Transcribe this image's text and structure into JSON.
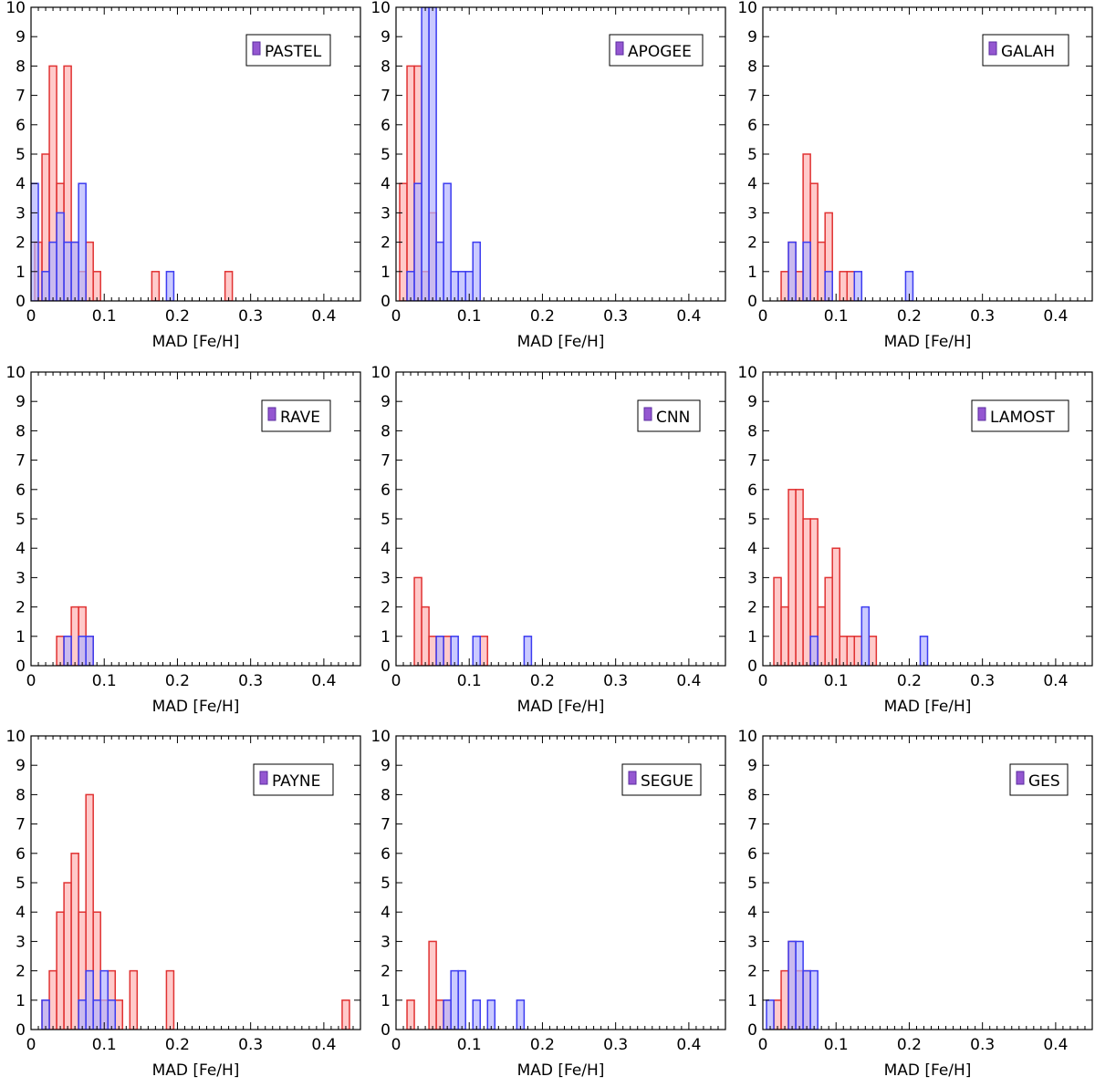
{
  "colors": {
    "red_fill": "#ffb3b3",
    "red_edge": "#e03232",
    "blue_fill": "#b3b3ff",
    "blue_edge": "#3c3cf0",
    "legend_swatch": "#9457d1",
    "overlap_fill": "#9a6acf"
  },
  "chart_data": [
    {
      "type": "bar",
      "legend": "PASTEL",
      "xlabel": "MAD [Fe/H]",
      "ylabel": "",
      "xlim": [
        0,
        0.45
      ],
      "ylim": [
        0,
        10
      ],
      "bin_width": 0.01,
      "xticks": [
        "0",
        "0.1",
        "0.2",
        "0.3",
        "0.4"
      ],
      "yticks": [
        "0",
        "1",
        "2",
        "3",
        "4",
        "5",
        "6",
        "7",
        "8",
        "9",
        "10"
      ],
      "series": [
        {
          "name": "red",
          "bins": [
            0.005,
            0.015,
            0.025,
            0.035,
            0.045,
            0.055,
            0.065,
            0.075,
            0.085,
            0.165,
            0.265
          ],
          "counts": [
            2,
            5,
            8,
            4,
            8,
            2,
            1,
            2,
            1,
            1,
            1
          ]
        },
        {
          "name": "blue",
          "bins": [
            0.0,
            0.015,
            0.025,
            0.035,
            0.045,
            0.055,
            0.065,
            0.185
          ],
          "counts": [
            4,
            1,
            2,
            3,
            2,
            2,
            4,
            1
          ]
        }
      ]
    },
    {
      "type": "bar",
      "legend": "APOGEE",
      "xlabel": "MAD [Fe/H]",
      "ylabel": "",
      "xlim": [
        0,
        0.45
      ],
      "ylim": [
        0,
        10
      ],
      "bin_width": 0.01,
      "xticks": [
        "0",
        "0.1",
        "0.2",
        "0.3",
        "0.4"
      ],
      "yticks": [
        "0",
        "1",
        "2",
        "3",
        "4",
        "5",
        "6",
        "7",
        "8",
        "9",
        "10"
      ],
      "series": [
        {
          "name": "red",
          "bins": [
            0.005,
            0.015,
            0.025,
            0.035,
            0.045
          ],
          "counts": [
            4,
            8,
            8,
            1,
            3
          ]
        },
        {
          "name": "blue",
          "bins": [
            0.015,
            0.025,
            0.035,
            0.045,
            0.055,
            0.065,
            0.075,
            0.085,
            0.095,
            0.105
          ],
          "counts": [
            1,
            4,
            10,
            10,
            2,
            4,
            1,
            1,
            1,
            2
          ]
        }
      ]
    },
    {
      "type": "bar",
      "legend": "GALAH",
      "xlabel": "MAD [Fe/H]",
      "ylabel": "",
      "xlim": [
        0,
        0.45
      ],
      "ylim": [
        0,
        10
      ],
      "bin_width": 0.01,
      "xticks": [
        "0",
        "0.1",
        "0.2",
        "0.3",
        "0.4"
      ],
      "yticks": [
        "0",
        "1",
        "2",
        "3",
        "4",
        "5",
        "6",
        "7",
        "8",
        "9",
        "10"
      ],
      "series": [
        {
          "name": "red",
          "bins": [
            0.025,
            0.035,
            0.045,
            0.055,
            0.065,
            0.075,
            0.085,
            0.105,
            0.115
          ],
          "counts": [
            1,
            2,
            1,
            5,
            4,
            2,
            3,
            1,
            1
          ]
        },
        {
          "name": "blue",
          "bins": [
            0.035,
            0.055,
            0.085,
            0.125,
            0.195
          ],
          "counts": [
            2,
            2,
            1,
            1,
            1
          ]
        }
      ]
    },
    {
      "type": "bar",
      "legend": "RAVE",
      "xlabel": "MAD [Fe/H]",
      "ylabel": "",
      "xlim": [
        0,
        0.45
      ],
      "ylim": [
        0,
        10
      ],
      "bin_width": 0.01,
      "xticks": [
        "0",
        "0.1",
        "0.2",
        "0.3",
        "0.4"
      ],
      "yticks": [
        "0",
        "1",
        "2",
        "3",
        "4",
        "5",
        "6",
        "7",
        "8",
        "9",
        "10"
      ],
      "series": [
        {
          "name": "red",
          "bins": [
            0.035,
            0.045,
            0.055,
            0.065,
            0.075
          ],
          "counts": [
            1,
            1,
            2,
            2,
            1
          ]
        },
        {
          "name": "blue",
          "bins": [
            0.045,
            0.065,
            0.075
          ],
          "counts": [
            1,
            1,
            1
          ]
        }
      ]
    },
    {
      "type": "bar",
      "legend": "CNN",
      "xlabel": "MAD [Fe/H]",
      "ylabel": "",
      "xlim": [
        0,
        0.45
      ],
      "ylim": [
        0,
        10
      ],
      "bin_width": 0.01,
      "xticks": [
        "0",
        "0.1",
        "0.2",
        "0.3",
        "0.4"
      ],
      "yticks": [
        "0",
        "1",
        "2",
        "3",
        "4",
        "5",
        "6",
        "7",
        "8",
        "9",
        "10"
      ],
      "series": [
        {
          "name": "red",
          "bins": [
            0.025,
            0.035,
            0.045,
            0.055,
            0.065,
            0.115
          ],
          "counts": [
            3,
            2,
            1,
            1,
            1,
            1
          ]
        },
        {
          "name": "blue",
          "bins": [
            0.055,
            0.075,
            0.105,
            0.175
          ],
          "counts": [
            1,
            1,
            1,
            1
          ]
        }
      ]
    },
    {
      "type": "bar",
      "legend": "LAMOST",
      "xlabel": "MAD [Fe/H]",
      "ylabel": "",
      "xlim": [
        0,
        0.45
      ],
      "ylim": [
        0,
        10
      ],
      "bin_width": 0.01,
      "xticks": [
        "0",
        "0.1",
        "0.2",
        "0.3",
        "0.4"
      ],
      "yticks": [
        "0",
        "1",
        "2",
        "3",
        "4",
        "5",
        "6",
        "7",
        "8",
        "9",
        "10"
      ],
      "series": [
        {
          "name": "red",
          "bins": [
            0.015,
            0.025,
            0.035,
            0.045,
            0.055,
            0.065,
            0.075,
            0.085,
            0.095,
            0.105,
            0.115,
            0.125,
            0.145
          ],
          "counts": [
            3,
            2,
            6,
            6,
            5,
            5,
            2,
            3,
            4,
            1,
            1,
            1,
            1
          ]
        },
        {
          "name": "blue",
          "bins": [
            0.065,
            0.135,
            0.215
          ],
          "counts": [
            1,
            2,
            1
          ]
        }
      ]
    },
    {
      "type": "bar",
      "legend": "PAYNE",
      "xlabel": "MAD [Fe/H]",
      "ylabel": "",
      "xlim": [
        0,
        0.45
      ],
      "ylim": [
        0,
        10
      ],
      "bin_width": 0.01,
      "xticks": [
        "0",
        "0.1",
        "0.2",
        "0.3",
        "0.4"
      ],
      "yticks": [
        "0",
        "1",
        "2",
        "3",
        "4",
        "5",
        "6",
        "7",
        "8",
        "9",
        "10"
      ],
      "series": [
        {
          "name": "red",
          "bins": [
            0.015,
            0.025,
            0.035,
            0.045,
            0.055,
            0.065,
            0.075,
            0.085,
            0.095,
            0.105,
            0.115,
            0.135,
            0.185,
            0.425
          ],
          "counts": [
            1,
            2,
            4,
            5,
            6,
            4,
            8,
            4,
            1,
            2,
            1,
            2,
            2,
            1
          ]
        },
        {
          "name": "blue",
          "bins": [
            0.015,
            0.065,
            0.075,
            0.085,
            0.095,
            0.105
          ],
          "counts": [
            1,
            1,
            2,
            1,
            2,
            1
          ]
        }
      ]
    },
    {
      "type": "bar",
      "legend": "SEGUE",
      "xlabel": "MAD [Fe/H]",
      "ylabel": "",
      "xlim": [
        0,
        0.45
      ],
      "ylim": [
        0,
        10
      ],
      "bin_width": 0.01,
      "xticks": [
        "0",
        "0.1",
        "0.2",
        "0.3",
        "0.4"
      ],
      "yticks": [
        "0",
        "1",
        "2",
        "3",
        "4",
        "5",
        "6",
        "7",
        "8",
        "9",
        "10"
      ],
      "series": [
        {
          "name": "red",
          "bins": [
            0.015,
            0.045,
            0.055,
            0.065
          ],
          "counts": [
            1,
            3,
            1,
            1
          ]
        },
        {
          "name": "blue",
          "bins": [
            0.065,
            0.075,
            0.085,
            0.105,
            0.125,
            0.165
          ],
          "counts": [
            1,
            2,
            2,
            1,
            1,
            1
          ]
        }
      ]
    },
    {
      "type": "bar",
      "legend": "GES",
      "xlabel": "MAD [Fe/H]",
      "ylabel": "",
      "xlim": [
        0,
        0.45
      ],
      "ylim": [
        0,
        10
      ],
      "bin_width": 0.01,
      "xticks": [
        "0",
        "0.1",
        "0.2",
        "0.3",
        "0.4"
      ],
      "yticks": [
        "0",
        "1",
        "2",
        "3",
        "4",
        "5",
        "6",
        "7",
        "8",
        "9",
        "10"
      ],
      "series": [
        {
          "name": "red",
          "bins": [
            0.015,
            0.025,
            0.035,
            0.045,
            0.055
          ],
          "counts": [
            1,
            2,
            3,
            2,
            2
          ]
        },
        {
          "name": "blue",
          "bins": [
            0.005,
            0.035,
            0.045,
            0.055,
            0.065
          ],
          "counts": [
            1,
            3,
            3,
            2,
            2
          ]
        }
      ]
    }
  ]
}
